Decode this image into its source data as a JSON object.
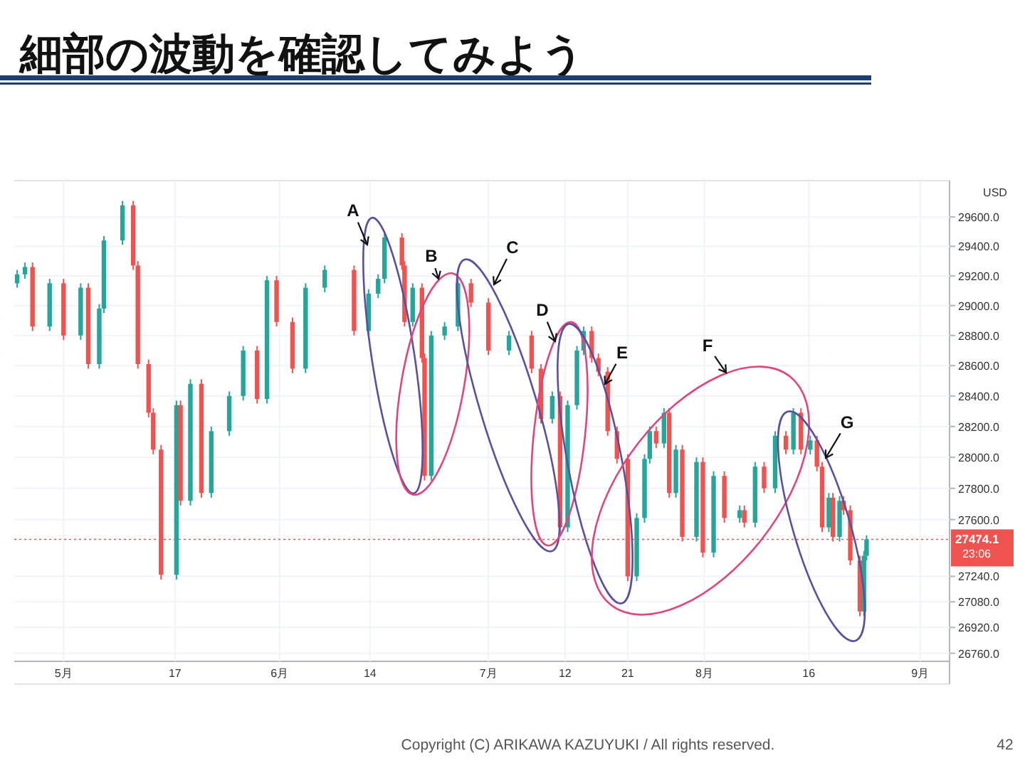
{
  "chart_data": {
    "type": "candlestick",
    "title": "細部の波動を確認してみよう",
    "x": [
      "--04-24T08:00",
      "--04-25T11:00",
      "--04-26T13:00",
      "--04-29T00:00",
      "--05-01T00:00",
      "--05-03T11:00",
      "--05-04T13:00",
      "--05-06T03:00",
      "--05-06T19:00",
      "--05-09T11:00",
      "--05-11T00:00",
      "--05-11T16:00",
      "--05-13T05:00",
      "--05-13T21:00",
      "--05-15T00:00",
      "--05-17T05:00",
      "--05-17T19:00",
      "--05-19T05:00",
      "--05-20T19:00",
      "--05-22T05:00",
      "--05-24T19:00",
      "--05-26T19:00",
      "--05-28T19:00",
      "--05-30T05:00",
      "--05-31T14:00",
      "--06-02T21:00",
      "--06-04T18:00",
      "--06-07T12:00",
      "--06-11T17:00",
      "--06-13T19:00",
      "--06-15T04:00",
      "--06-16T02:00",
      "--06-18T14:00",
      "--06-18T23:00",
      "--06-20T03:00",
      "--06-21T11:00",
      "--06-21T20:00",
      "--06-22T19:00",
      "--06-24T17:00",
      "--06-26T15:00",
      "--06-28T12:00",
      "--07-01T00:00",
      "--07-03T23:00",
      "--07-07T05:00",
      "--07-08T13:00",
      "--07-10T04:00",
      "--07-11T07:00",
      "--07-12T09:00",
      "--07-13T17:00",
      "--07-14T16:00",
      "--07-15T20:00",
      "--07-16T19:00",
      "--07-18T03:00",
      "--07-19T11:00",
      "--07-21T00:00",
      "--07-22T07:00",
      "--07-23T10:00",
      "--07-24T04:00",
      "--07-25T02:00",
      "--07-26T05:00",
      "--07-26T23:00",
      "--07-27T22:00",
      "--07-28T20:00",
      "--07-30T21:00",
      "--07-31T19:00",
      "--08-02T08:00",
      "--08-03T21:00",
      "--08-06T02:00",
      "--08-06T18:00",
      "--08-08T07:00",
      "--08-09T14:00",
      "--08-11T04:00",
      "--08-12T17:00",
      "--08-13T19:00",
      "--08-14T21:00",
      "--08-16T05:00",
      "--08-17T04:00",
      "--08-17T22:00",
      "--08-18T21:00",
      "--08-19T11:00",
      "--08-20T10:00",
      "--08-21T00:00",
      "--08-21T23:00",
      "--08-23T08:00",
      "--08-23T22:00",
      "--08-24T07:00"
    ],
    "ohlc": [
      [
        29150,
        29240,
        29120,
        29210
      ],
      [
        29210,
        29290,
        29180,
        29260
      ],
      [
        29260,
        29290,
        28830,
        28860
      ],
      [
        28860,
        29180,
        28830,
        29150
      ],
      [
        29150,
        29180,
        28770,
        28800
      ],
      [
        28800,
        29150,
        28770,
        29120
      ],
      [
        29120,
        29150,
        28580,
        28610
      ],
      [
        28610,
        29010,
        28580,
        28980
      ],
      [
        28980,
        29470,
        28950,
        29440
      ],
      [
        29440,
        29710,
        29410,
        29680
      ],
      [
        29680,
        29710,
        29240,
        29270
      ],
      [
        29270,
        29300,
        28580,
        28610
      ],
      [
        28610,
        28640,
        28260,
        28290
      ],
      [
        28290,
        28320,
        28020,
        28050
      ],
      [
        28050,
        28080,
        27220,
        27250
      ],
      [
        27250,
        28370,
        27220,
        28340
      ],
      [
        28340,
        28370,
        27690,
        27720
      ],
      [
        27720,
        28510,
        27690,
        28480
      ],
      [
        28480,
        28510,
        27740,
        27770
      ],
      [
        27770,
        28200,
        27740,
        28170
      ],
      [
        28170,
        28430,
        28140,
        28400
      ],
      [
        28400,
        28730,
        28370,
        28700
      ],
      [
        28700,
        28730,
        28350,
        28380
      ],
      [
        28380,
        29200,
        28350,
        29170
      ],
      [
        29170,
        29200,
        28860,
        28890
      ],
      [
        28890,
        28920,
        28550,
        28580
      ],
      [
        28580,
        29150,
        28550,
        29120
      ],
      [
        29120,
        29270,
        29090,
        29240
      ],
      [
        29240,
        29270,
        28800,
        28830
      ],
      [
        28830,
        29110,
        28800,
        29080
      ],
      [
        29080,
        29210,
        29050,
        29180
      ],
      [
        29180,
        29490,
        29150,
        29460
      ],
      [
        29460,
        29490,
        29240,
        29270
      ],
      [
        29270,
        29300,
        28860,
        28890
      ],
      [
        28890,
        29150,
        28860,
        29120
      ],
      [
        29120,
        29150,
        28620,
        28650
      ],
      [
        28650,
        28680,
        27850,
        27880
      ],
      [
        27880,
        28830,
        27850,
        28800
      ],
      [
        28800,
        28890,
        28770,
        28860
      ],
      [
        28860,
        29180,
        28830,
        29150
      ],
      [
        29150,
        29180,
        28990,
        29020
      ],
      [
        29020,
        29050,
        28670,
        28700
      ],
      [
        28700,
        28830,
        28670,
        28800
      ],
      [
        28800,
        28830,
        28550,
        28580
      ],
      [
        28580,
        28610,
        28220,
        28250
      ],
      [
        28250,
        28430,
        28220,
        28400
      ],
      [
        28400,
        28430,
        27520,
        27550
      ],
      [
        27550,
        28370,
        27520,
        28340
      ],
      [
        28340,
        28730,
        28310,
        28700
      ],
      [
        28700,
        28860,
        28670,
        28830
      ],
      [
        28830,
        28860,
        28620,
        28650
      ],
      [
        28650,
        28680,
        28530,
        28560
      ],
      [
        28560,
        28590,
        28140,
        28170
      ],
      [
        28170,
        28200,
        27960,
        27990
      ],
      [
        27990,
        28020,
        27210,
        27240
      ],
      [
        27240,
        27640,
        27210,
        27610
      ],
      [
        27610,
        28020,
        27580,
        27990
      ],
      [
        27990,
        28200,
        27960,
        28170
      ],
      [
        28170,
        28200,
        28060,
        28090
      ],
      [
        28090,
        28320,
        28060,
        28290
      ],
      [
        28290,
        28320,
        27740,
        27770
      ],
      [
        27770,
        28080,
        27740,
        28050
      ],
      [
        28050,
        28080,
        27460,
        27490
      ],
      [
        27490,
        28000,
        27460,
        27970
      ],
      [
        27970,
        28000,
        27360,
        27390
      ],
      [
        27390,
        27910,
        27360,
        27880
      ],
      [
        27880,
        27910,
        27580,
        27610
      ],
      [
        27610,
        27690,
        27580,
        27660
      ],
      [
        27660,
        27690,
        27550,
        27580
      ],
      [
        27580,
        27970,
        27550,
        27940
      ],
      [
        27940,
        27970,
        27770,
        27800
      ],
      [
        27800,
        28170,
        27770,
        28140
      ],
      [
        28140,
        28170,
        28020,
        28050
      ],
      [
        28050,
        28320,
        28020,
        28290
      ],
      [
        28290,
        28320,
        28020,
        28050
      ],
      [
        28050,
        28140,
        28020,
        28110
      ],
      [
        28110,
        28140,
        27910,
        27940
      ],
      [
        27940,
        27970,
        27520,
        27550
      ],
      [
        27550,
        27770,
        27520,
        27740
      ],
      [
        27740,
        27770,
        27460,
        27490
      ],
      [
        27490,
        27750,
        27460,
        27720
      ],
      [
        27720,
        27750,
        27630,
        27660
      ],
      [
        27660,
        27690,
        27310,
        27340
      ],
      [
        27340,
        27370,
        26990,
        27020
      ],
      [
        27020,
        27400,
        26990,
        27370
      ],
      [
        27370,
        27500,
        27340,
        27474.1
      ]
    ],
    "colors": [
      "#26a69a",
      "#26a69a",
      "#ef5350",
      "#26a69a",
      "#ef5350",
      "#26a69a",
      "#ef5350",
      "#26a69a",
      "#26a69a",
      "#26a69a",
      "#ef5350",
      "#ef5350",
      "#ef5350",
      "#ef5350",
      "#ef5350",
      "#26a69a",
      "#ef5350",
      "#26a69a",
      "#ef5350",
      "#26a69a",
      "#26a69a",
      "#26a69a",
      "#ef5350",
      "#26a69a",
      "#ef5350",
      "#ef5350",
      "#26a69a",
      "#26a69a",
      "#ef5350",
      "#26a69a",
      "#26a69a",
      "#26a69a",
      "#ef5350",
      "#ef5350",
      "#26a69a",
      "#ef5350",
      "#ef5350",
      "#26a69a",
      "#26a69a",
      "#26a69a",
      "#ef5350",
      "#ef5350",
      "#26a69a",
      "#ef5350",
      "#ef5350",
      "#26a69a",
      "#ef5350",
      "#26a69a",
      "#26a69a",
      "#26a69a",
      "#ef5350",
      "#ef5350",
      "#ef5350",
      "#ef5350",
      "#ef5350",
      "#26a69a",
      "#26a69a",
      "#26a69a",
      "#ef5350",
      "#26a69a",
      "#ef5350",
      "#26a69a",
      "#ef5350",
      "#26a69a",
      "#ef5350",
      "#26a69a",
      "#ef5350",
      "#26a69a",
      "#ef5350",
      "#26a69a",
      "#ef5350",
      "#26a69a",
      "#ef5350",
      "#26a69a",
      "#ef5350",
      "#26a69a",
      "#ef5350",
      "#ef5350",
      "#26a69a",
      "#ef5350",
      "#26a69a",
      "#ef5350",
      "#ef5350",
      "#ef5350",
      "#26a69a",
      "#26a69a"
    ],
    "xlim": [
      "--04-23T22:00",
      "--09-05T05:00"
    ],
    "xticks": [
      {
        "value": "--05-01",
        "label": "5月"
      },
      {
        "value": "--05-17",
        "label": "17"
      },
      {
        "value": "--06-01",
        "label": "6月"
      },
      {
        "value": "--06-14",
        "label": "14"
      },
      {
        "value": "--07-01",
        "label": "7月"
      },
      {
        "value": "--07-12",
        "label": "12"
      },
      {
        "value": "--07-21",
        "label": "21"
      },
      {
        "value": "--08-01",
        "label": "8月"
      },
      {
        "value": "--08-16",
        "label": "16"
      },
      {
        "value": "--09-01",
        "label": "9月"
      }
    ],
    "log": true,
    "ylim": [
      26710,
      29850
    ],
    "yticks": [
      {
        "value": 29600,
        "label": "29600.0"
      },
      {
        "value": 29400,
        "label": "29400.0"
      },
      {
        "value": 29200,
        "label": "29200.0"
      },
      {
        "value": 29000,
        "label": "29000.0"
      },
      {
        "value": 28800,
        "label": "28800.0"
      },
      {
        "value": 28600,
        "label": "28600.0"
      },
      {
        "value": 28400,
        "label": "28400.0"
      },
      {
        "value": 28200,
        "label": "28200.0"
      },
      {
        "value": 28000,
        "label": "28000.0"
      },
      {
        "value": 27800,
        "label": "27800.0"
      },
      {
        "value": 27600,
        "label": "27600.0"
      },
      {
        "value": 27240,
        "label": "27240.0"
      },
      {
        "value": 27080,
        "label": "27080.0"
      },
      {
        "value": 26920,
        "label": "26920.0"
      },
      {
        "value": 26760,
        "label": "26760.0"
      }
    ],
    "grid": true,
    "ref_lines": [
      {
        "axis": "y",
        "value": 27474.1,
        "label": "27474.1",
        "color": "#ef5350",
        "line_style": "dotted"
      }
    ],
    "annotations": [
      "A",
      "B",
      "C",
      "D",
      "E",
      "F",
      "G",
      "USD",
      "23:06",
      "Copyright (C) ARIKAWA KAZUYUKI / All rights reserved.",
      "42"
    ]
  }
}
